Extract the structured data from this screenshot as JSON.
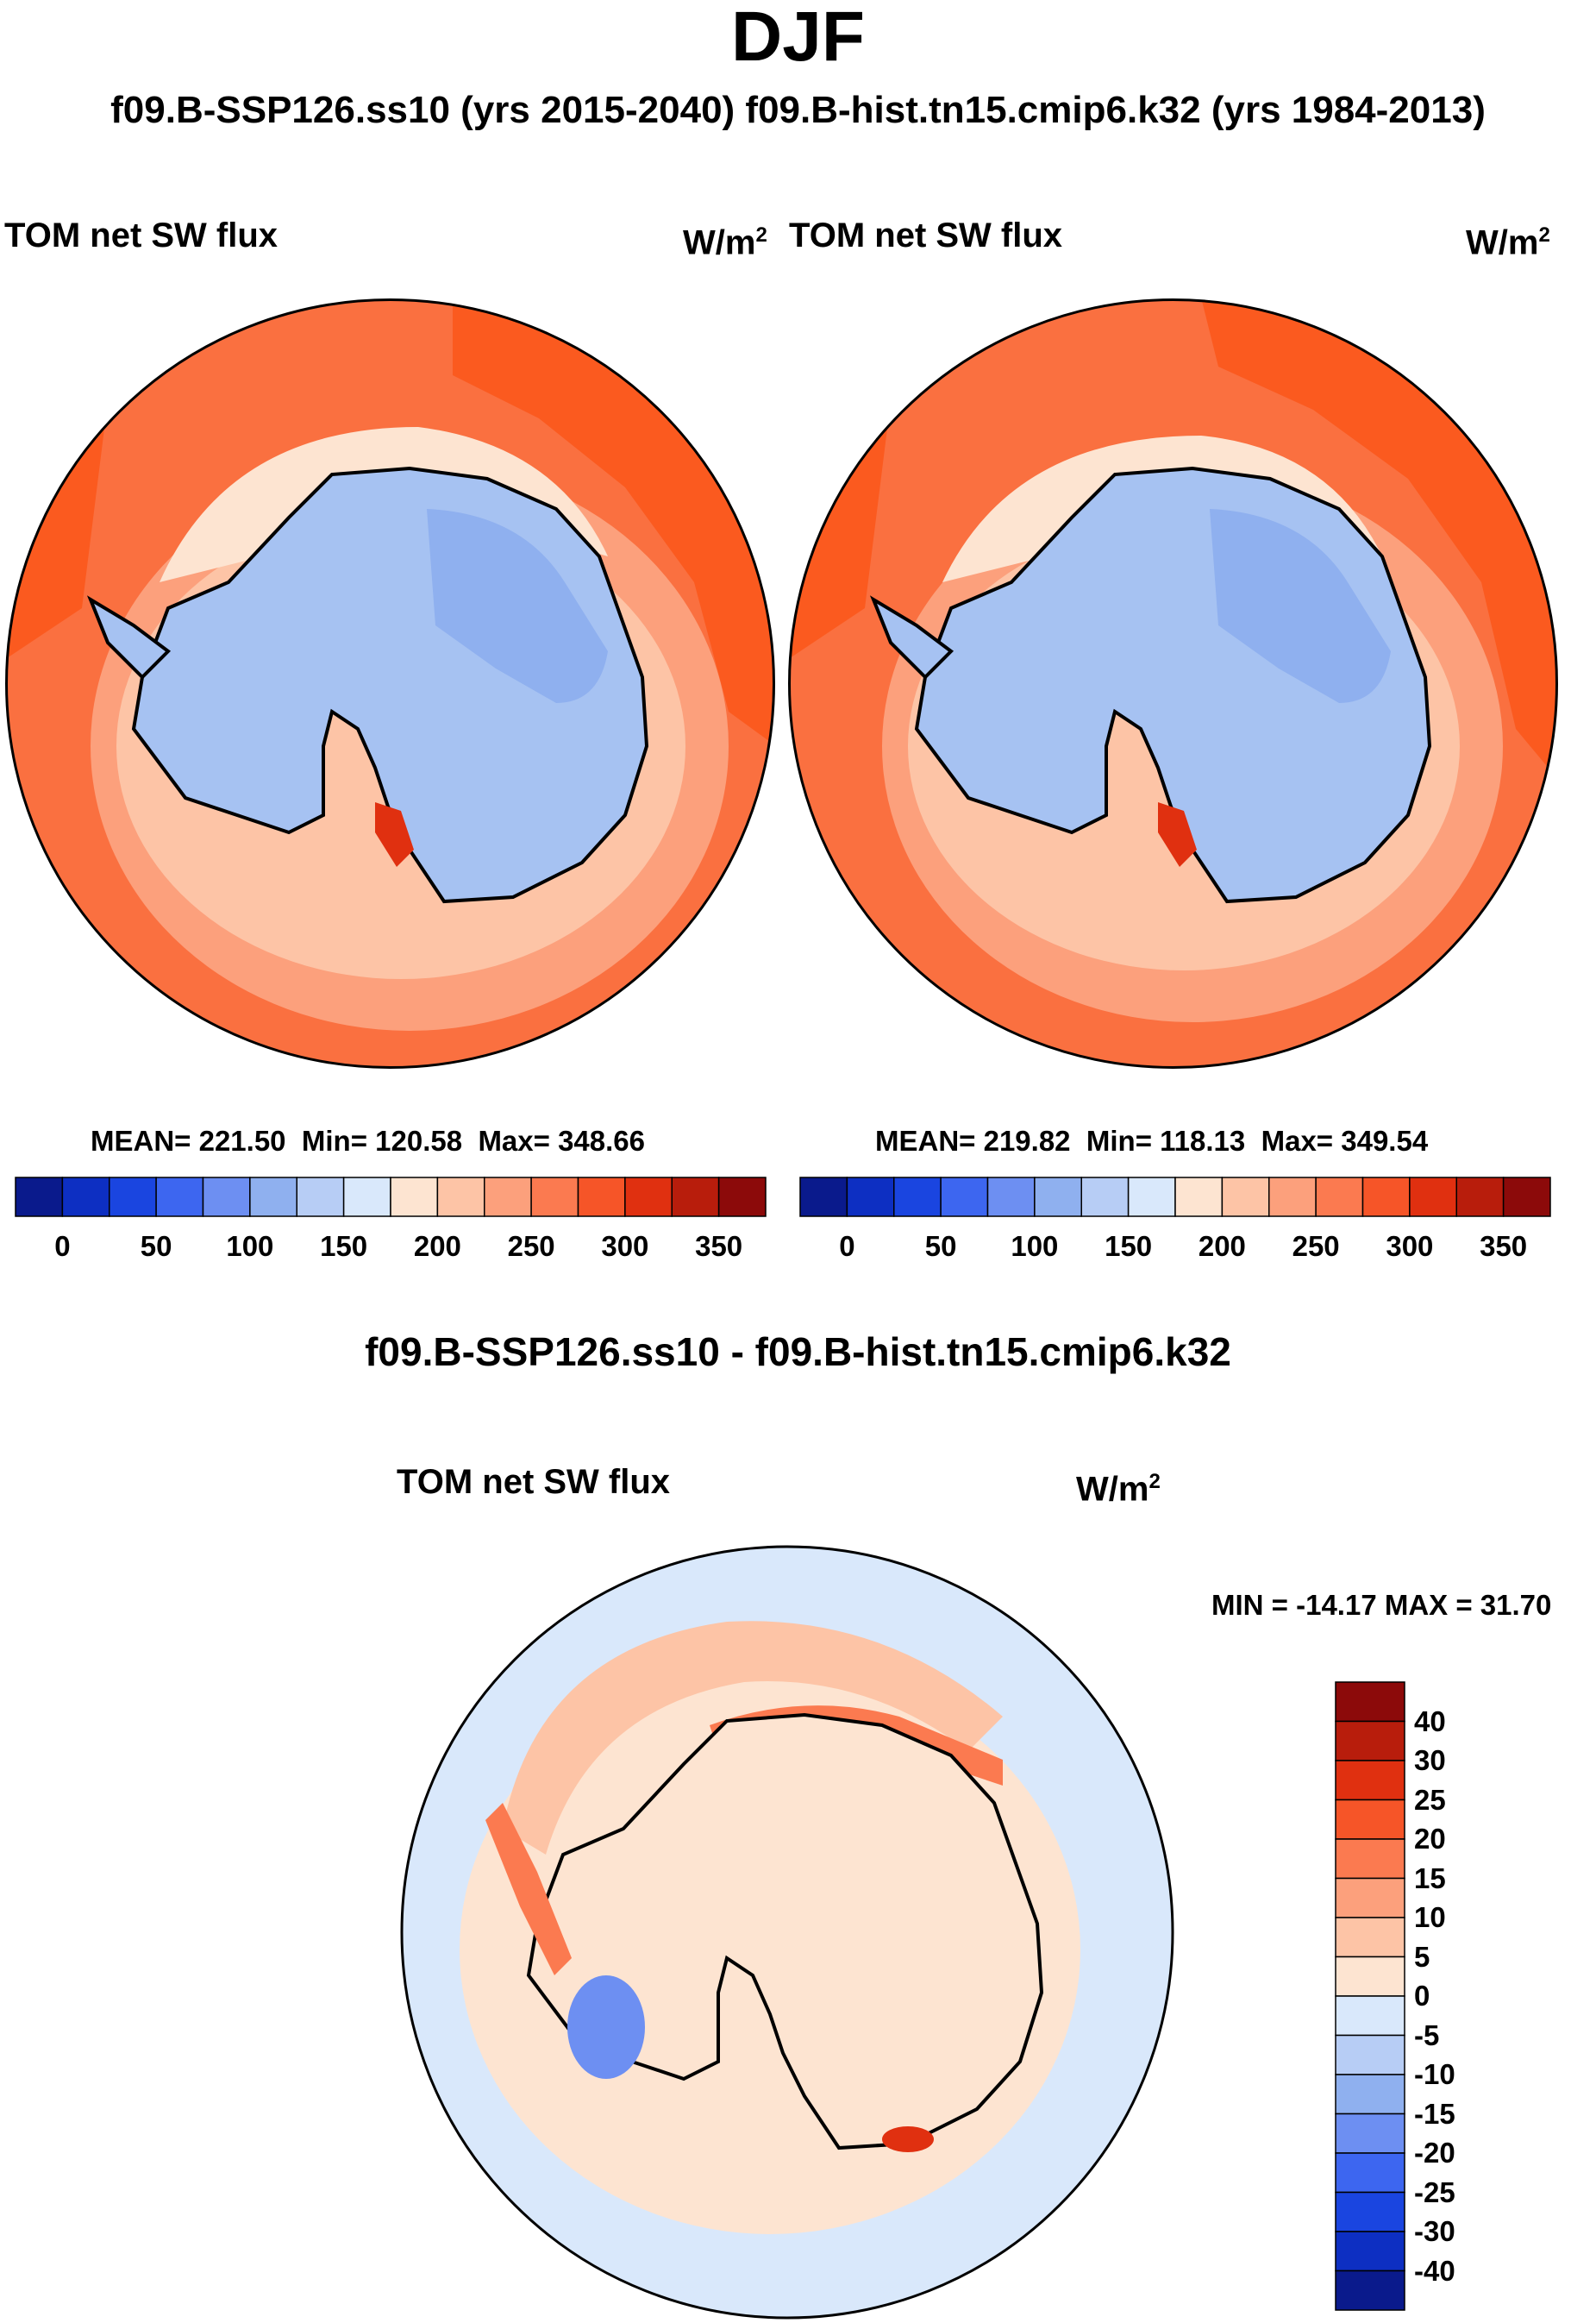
{
  "header": {
    "title": "DJF",
    "subtitle": "f09.B-SSP126.ss10 (yrs 2015-2040)  f09.B-hist.tn15.cmip6.k32 (yrs 1984-2013)"
  },
  "colors": {
    "ocean_warm": "#fb5a1f",
    "ocean_mid": "#fa7040",
    "ocean_light": "#fcab83",
    "ocean_pale": "#fdd0b8",
    "ice": "#a6c2f2",
    "ice_dark": "#8fb0ef",
    "coast": "#000000",
    "diff_bg": "#fde4d1",
    "diff_blue": "#d3e6fb"
  },
  "chart_data": [
    {
      "type": "heatmap",
      "projection": "south-polar-stereographic",
      "title": "TOM net SW flux",
      "units": "W/m",
      "units_sup": "2",
      "case": "f09.B-SSP126.ss10 (yrs 2015-2040)",
      "mean_label": "MEAN= 221.50",
      "min_label": "Min= 120.58",
      "max_label": "Max= 348.66",
      "stats": {
        "mean": 221.5,
        "min": 120.58,
        "max": 348.66
      },
      "colorbar": {
        "orientation": "horizontal",
        "colors": [
          "#0a1a8c",
          "#0d2fc2",
          "#1a45e0",
          "#3d66f0",
          "#6d8ff2",
          "#8fb0ef",
          "#b7cdf5",
          "#d9e8fb",
          "#fde4d1",
          "#fdc4a6",
          "#fca07c",
          "#fb7a50",
          "#f65528",
          "#e03010",
          "#b81d0c",
          "#8c0a0a"
        ],
        "ticks": [
          "0",
          "50",
          "100",
          "150",
          "200",
          "250",
          "300",
          "350"
        ]
      }
    },
    {
      "type": "heatmap",
      "projection": "south-polar-stereographic",
      "title": "TOM net SW flux",
      "units": "W/m",
      "units_sup": "2",
      "case": "f09.B-hist.tn15.cmip6.k32 (yrs 1984-2013)",
      "mean_label": "MEAN= 219.82",
      "min_label": "Min= 118.13",
      "max_label": "Max= 349.54",
      "stats": {
        "mean": 219.82,
        "min": 118.13,
        "max": 349.54
      },
      "colorbar": {
        "orientation": "horizontal",
        "colors": [
          "#0a1a8c",
          "#0d2fc2",
          "#1a45e0",
          "#3d66f0",
          "#6d8ff2",
          "#8fb0ef",
          "#b7cdf5",
          "#d9e8fb",
          "#fde4d1",
          "#fdc4a6",
          "#fca07c",
          "#fb7a50",
          "#f65528",
          "#e03010",
          "#b81d0c",
          "#8c0a0a"
        ],
        "ticks": [
          "0",
          "50",
          "100",
          "150",
          "200",
          "250",
          "300",
          "350"
        ]
      }
    },
    {
      "type": "heatmap",
      "projection": "south-polar-stereographic",
      "diff_title": "f09.B-SSP126.ss10 - f09.B-hist.tn15.cmip6.k32",
      "title": "TOM net SW flux",
      "units": "W/m",
      "units_sup": "2",
      "minmax_label": "MIN = -14.17 MAX =  31.70",
      "stats": {
        "min": -14.17,
        "max": 31.7
      },
      "colorbar": {
        "orientation": "vertical",
        "colors": [
          "#8c0a0a",
          "#b81d0c",
          "#e03010",
          "#f65528",
          "#fb7a50",
          "#fca07c",
          "#fdc4a6",
          "#fde4d1",
          "#d9e8fb",
          "#b7cdf5",
          "#8fb0ef",
          "#6d8ff2",
          "#3d66f0",
          "#1a45e0",
          "#0d2fc2",
          "#0a1a8c"
        ],
        "ticks": [
          "40",
          "30",
          "25",
          "20",
          "15",
          "10",
          "5",
          "0",
          "-5",
          "-10",
          "-15",
          "-20",
          "-25",
          "-30",
          "-40"
        ]
      }
    }
  ]
}
